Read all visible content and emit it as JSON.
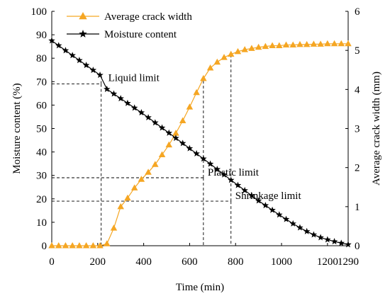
{
  "chart_data": {
    "type": "line",
    "xlabel": "Time (min)",
    "ylabel_left": "Moisture content (%)",
    "ylabel_right": "Average crack width (mm)",
    "xlim": [
      0,
      1290
    ],
    "ylim_left": [
      0,
      100
    ],
    "ylim_right": [
      0,
      6
    ],
    "xticks": [
      0,
      200,
      400,
      600,
      800,
      1000,
      1200,
      1290
    ],
    "yticks_left": [
      0,
      10,
      20,
      30,
      40,
      50,
      60,
      70,
      80,
      90,
      100
    ],
    "yticks_right": [
      0,
      1,
      2,
      3,
      4,
      5,
      6
    ],
    "legend_position": "top-left",
    "grid": false,
    "series": [
      {
        "name": "Average crack width",
        "axis": "right",
        "color": "#f5a623",
        "marker": "triangle",
        "x": [
          0,
          30,
          60,
          90,
          120,
          150,
          180,
          210,
          240,
          270,
          300,
          330,
          360,
          390,
          420,
          450,
          480,
          510,
          540,
          570,
          600,
          630,
          660,
          690,
          720,
          750,
          780,
          810,
          840,
          870,
          900,
          930,
          960,
          990,
          1020,
          1050,
          1080,
          1110,
          1140,
          1170,
          1200,
          1230,
          1260,
          1290
        ],
        "y": [
          0.0,
          0.0,
          0.0,
          0.0,
          0.0,
          0.0,
          0.0,
          0.0,
          0.05,
          0.45,
          1.0,
          1.22,
          1.48,
          1.7,
          1.88,
          2.08,
          2.33,
          2.58,
          2.88,
          3.2,
          3.55,
          3.92,
          4.28,
          4.55,
          4.7,
          4.82,
          4.9,
          4.97,
          5.02,
          5.05,
          5.08,
          5.1,
          5.12,
          5.12,
          5.14,
          5.14,
          5.15,
          5.15,
          5.16,
          5.16,
          5.17,
          5.17,
          5.17,
          5.17
        ]
      },
      {
        "name": "Moisture content",
        "axis": "left",
        "color": "#000000",
        "marker": "star",
        "x": [
          0,
          30,
          60,
          90,
          120,
          150,
          180,
          210,
          240,
          270,
          300,
          330,
          360,
          390,
          420,
          450,
          480,
          510,
          540,
          570,
          600,
          630,
          660,
          690,
          720,
          750,
          780,
          810,
          840,
          870,
          900,
          930,
          960,
          990,
          1020,
          1050,
          1080,
          1110,
          1140,
          1170,
          1200,
          1230,
          1260,
          1290
        ],
        "y": [
          87.5,
          85.4,
          83.3,
          81.2,
          79.1,
          77.0,
          74.9,
          72.8,
          66.8,
          64.8,
          62.8,
          60.8,
          58.8,
          56.8,
          54.7,
          52.5,
          50.3,
          48.1,
          45.9,
          43.7,
          41.5,
          39.3,
          37.1,
          34.9,
          32.6,
          30.3,
          28.0,
          25.8,
          23.6,
          21.4,
          19.2,
          17.2,
          15.2,
          13.2,
          11.3,
          9.4,
          7.7,
          6.1,
          4.7,
          3.5,
          2.6,
          1.8,
          1.1,
          0.5
        ]
      }
    ],
    "annotations": [
      {
        "label": "Liquid limit",
        "x": 215,
        "y_left": 69
      },
      {
        "label": "Plastic limit",
        "x": 660,
        "y_left": 29
      },
      {
        "label": "Shrinkage limit",
        "x": 780,
        "y_left": 19
      }
    ]
  }
}
